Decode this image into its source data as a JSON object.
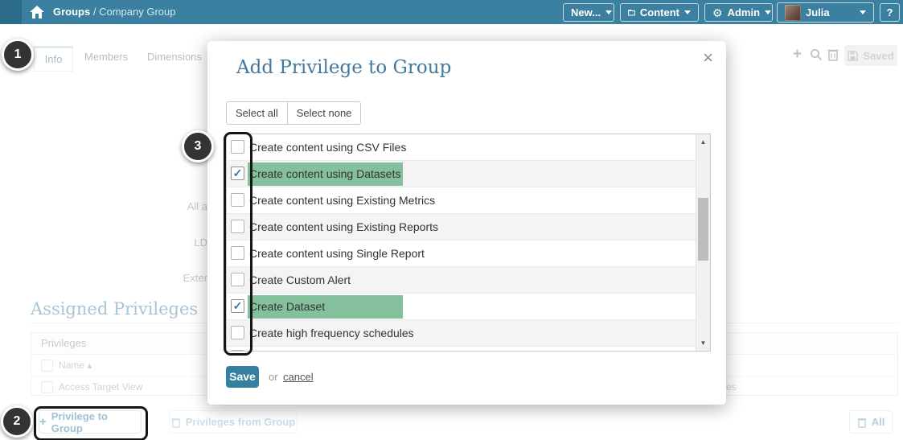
{
  "header": {
    "breadcrumb_primary": "Groups",
    "breadcrumb_secondary": "/ Company Group",
    "new_button": "New...",
    "content_button": "Content",
    "admin_button": "Admin",
    "user_button": "Julia",
    "help_button": "?"
  },
  "tabs": {
    "info": "Info",
    "members": "Members",
    "dimensions": "Dimensions"
  },
  "toolbar": {
    "saved_button": "Saved"
  },
  "background": {
    "labels": {
      "label1": "All a",
      "label2": "LD",
      "label3": "Exter"
    },
    "section_title": "Assigned Privileges",
    "table": {
      "panel_header": "Privileges",
      "name_column": "Name",
      "sort_indicator": "▴",
      "row1": "Access Target View",
      "partial_text": "ces"
    },
    "add_privilege_button": "Privilege to Group",
    "remove_privilege_button": "Privileges from Group",
    "delete_all_button": "All"
  },
  "modal": {
    "title": "Add Privilege to Group",
    "select_all": "Select all",
    "select_none": "Select none",
    "privileges": [
      {
        "label": "Create content using CSV Files",
        "checked": false,
        "highlighted": false
      },
      {
        "label": "Create content using Datasets",
        "checked": true,
        "highlighted": true
      },
      {
        "label": "Create content using Existing Metrics",
        "checked": false,
        "highlighted": false
      },
      {
        "label": "Create content using Existing Reports",
        "checked": false,
        "highlighted": false
      },
      {
        "label": "Create content using Single Report",
        "checked": false,
        "highlighted": false
      },
      {
        "label": "Create Custom Alert",
        "checked": false,
        "highlighted": false
      },
      {
        "label": "Create Dataset",
        "checked": true,
        "highlighted": true
      },
      {
        "label": "Create high frequency schedules",
        "checked": false,
        "highlighted": false
      },
      {
        "label": "",
        "checked": false,
        "highlighted": false,
        "partial": true
      }
    ],
    "save_button": "Save",
    "or_text": "or",
    "cancel_link": "cancel"
  },
  "annotations": {
    "step1": "1",
    "step2": "2",
    "step3": "3"
  },
  "icons": {
    "plus": "+",
    "check": "✓",
    "close": "×",
    "scroll_up": "▲",
    "scroll_down": "▼",
    "gear": "⚙"
  },
  "colors": {
    "header_teal": "#3b80a0",
    "header_strip": "#2c6c89",
    "accent_teal": "#35809f",
    "title_blue": "#44799e",
    "highlight_green": "#85c09d",
    "callout_dark": "#333333"
  }
}
